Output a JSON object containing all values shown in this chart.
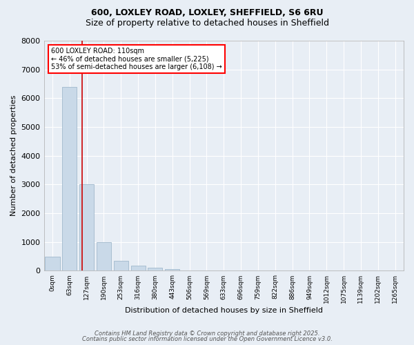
{
  "title1": "600, LOXLEY ROAD, LOXLEY, SHEFFIELD, S6 6RU",
  "title2": "Size of property relative to detached houses in Sheffield",
  "xlabel": "Distribution of detached houses by size in Sheffield",
  "ylabel": "Number of detached properties",
  "bar_labels": [
    "0sqm",
    "63sqm",
    "127sqm",
    "190sqm",
    "253sqm",
    "316sqm",
    "380sqm",
    "443sqm",
    "506sqm",
    "569sqm",
    "633sqm",
    "696sqm",
    "759sqm",
    "822sqm",
    "886sqm",
    "949sqm",
    "1012sqm",
    "1075sqm",
    "1139sqm",
    "1202sqm",
    "1265sqm"
  ],
  "bar_values": [
    500,
    6400,
    3000,
    1000,
    350,
    175,
    100,
    50,
    0,
    0,
    0,
    0,
    0,
    0,
    0,
    0,
    0,
    0,
    0,
    0,
    0
  ],
  "bar_color": "#c9d9e8",
  "bar_edgecolor": "#a0b8cc",
  "bg_color": "#e8eef5",
  "grid_color": "#ffffff",
  "vline_x": 1.74,
  "vline_color": "#cc0000",
  "vline_lw": 1.2,
  "ylim": [
    0,
    8000
  ],
  "yticks": [
    0,
    1000,
    2000,
    3000,
    4000,
    5000,
    6000,
    7000,
    8000
  ],
  "annotation_text": "600 LOXLEY ROAD: 110sqm\n← 46% of detached houses are smaller (5,225)\n53% of semi-detached houses are larger (6,108) →",
  "ann_fontsize": 7,
  "title1_fontsize": 9,
  "title2_fontsize": 9,
  "xlabel_fontsize": 8,
  "ylabel_fontsize": 8,
  "ytick_fontsize": 8,
  "xtick_fontsize": 6.5,
  "footer_text1": "Contains HM Land Registry data © Crown copyright and database right 2025.",
  "footer_text2": "Contains public sector information licensed under the Open Government Licence v3.0.",
  "footer_fontsize": 6
}
